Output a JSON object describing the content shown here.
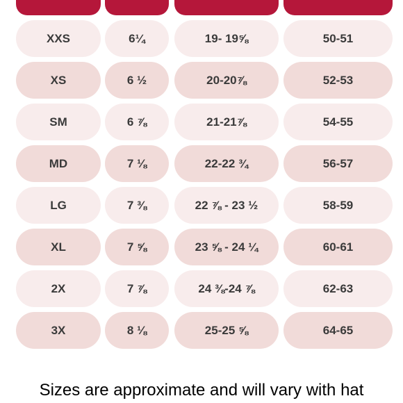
{
  "rows": [
    {
      "size": "XXS",
      "hat": "6¼",
      "inches": "19- 19⅝",
      "cm": "50-51"
    },
    {
      "size": "XS",
      "hat": "6 ½",
      "inches": "20-20⅞",
      "cm": "52-53"
    },
    {
      "size": "SM",
      "hat": "6 ⅞",
      "inches": "21-21⅞",
      "cm": "54-55"
    },
    {
      "size": "MD",
      "hat": "7 ⅛",
      "inches": "22-22 ¾",
      "cm": "56-57"
    },
    {
      "size": "LG",
      "hat": "7 ⅜",
      "inches": "22 ⅞ - 23 ½",
      "cm": "58-59"
    },
    {
      "size": "XL",
      "hat": "7 ⅝",
      "inches": "23 ⅝ - 24 ¼",
      "cm": "60-61"
    },
    {
      "size": "2X",
      "hat": "7 ⅞",
      "inches": "24 ⅜-24 ⅞",
      "cm": "62-63"
    },
    {
      "size": "3X",
      "hat": "8 ⅛",
      "inches": "25-25 ⅝",
      "cm": "64-65"
    }
  ],
  "footer_text": "Sizes are approximate and will vary with hat",
  "colors": {
    "header": "#b5173a",
    "row_light": "#f8ecec",
    "row_dark": "#f1dbd9",
    "cell_text": "#3a3a3a"
  }
}
